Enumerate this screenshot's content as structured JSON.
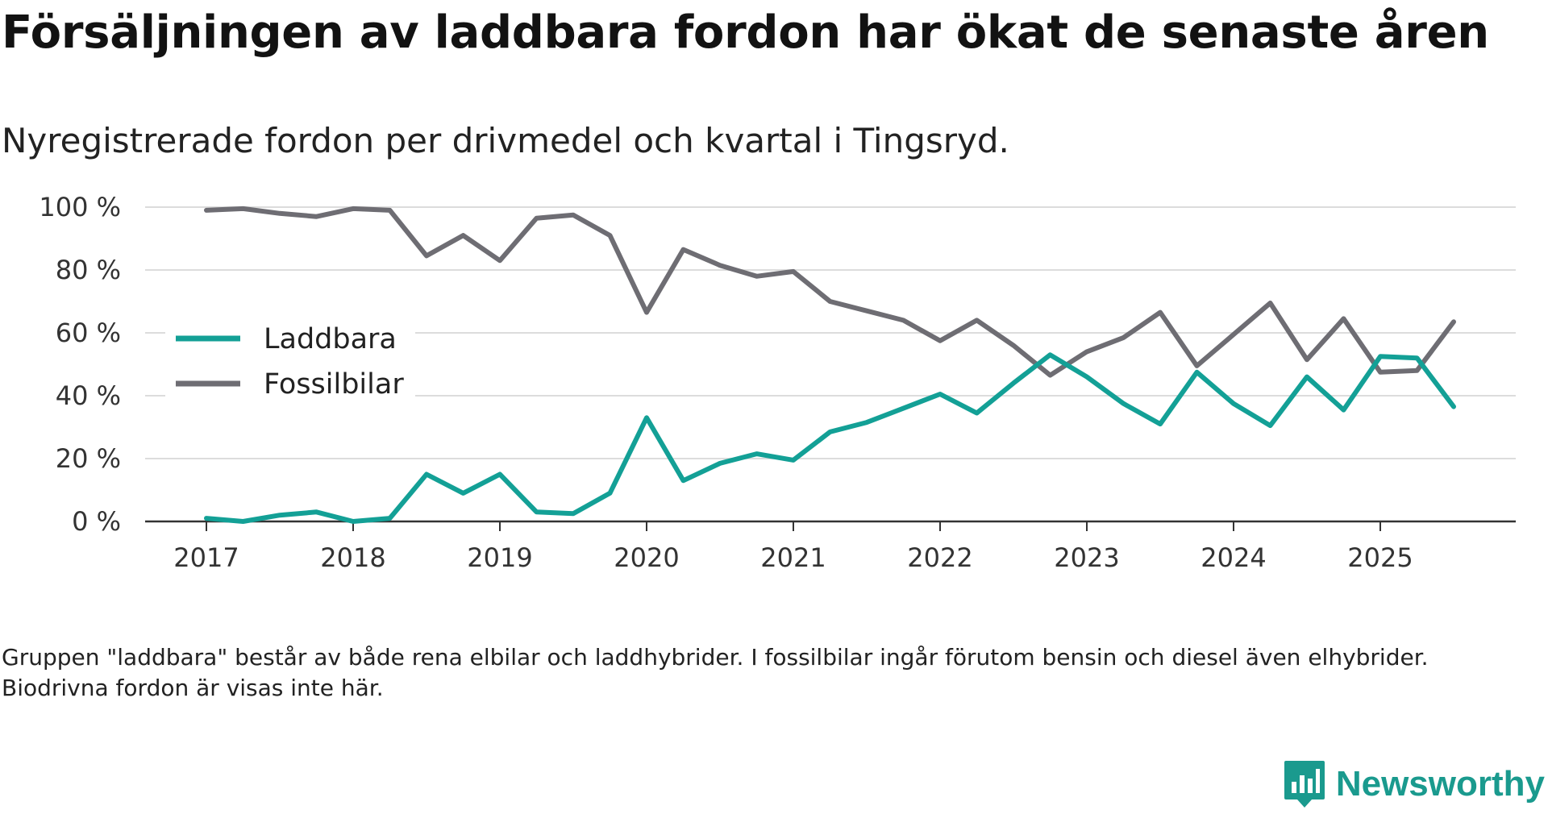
{
  "header": {
    "title": "Försäljningen av laddbara fordon har ökat de senaste åren",
    "subtitle": "Nyregistrerade fordon per drivmedel och kvartal i Tingsryd."
  },
  "footnote": "Gruppen \"laddbara\" består av både rena elbilar och laddhybrider. I fossilbilar ingår förutom bensin och diesel även elhybrider. Biodrivna fordon är visas inte här.",
  "brand": {
    "name": "Newsworthy",
    "icon": "newsworthy-logo-icon",
    "color": "#1a9a8e"
  },
  "chart_data": {
    "type": "line",
    "title": "Försäljningen av laddbara fordon har ökat de senaste åren",
    "subtitle": "Nyregistrerade fordon per drivmedel och kvartal i Tingsryd.",
    "xlabel": "",
    "ylabel": "",
    "ylim": [
      0,
      100
    ],
    "yticks": [
      0,
      20,
      40,
      60,
      80,
      100
    ],
    "ytick_labels": [
      "0 %",
      "20 %",
      "40 %",
      "60 %",
      "80 %",
      "100 %"
    ],
    "xticks": [
      "2017",
      "2018",
      "2019",
      "2020",
      "2021",
      "2022",
      "2023",
      "2024",
      "2025"
    ],
    "grid": true,
    "legend_position": "left-middle",
    "x": [
      "2017-Q1",
      "2017-Q2",
      "2017-Q3",
      "2017-Q4",
      "2018-Q1",
      "2018-Q2",
      "2018-Q3",
      "2018-Q4",
      "2019-Q1",
      "2019-Q2",
      "2019-Q3",
      "2019-Q4",
      "2020-Q1",
      "2020-Q2",
      "2020-Q3",
      "2020-Q4",
      "2021-Q1",
      "2021-Q2",
      "2021-Q3",
      "2021-Q4",
      "2022-Q1",
      "2022-Q2",
      "2022-Q3",
      "2022-Q4",
      "2023-Q1",
      "2023-Q2",
      "2023-Q3",
      "2023-Q4",
      "2024-Q1",
      "2024-Q2",
      "2024-Q3",
      "2024-Q4",
      "2025-Q1",
      "2025-Q2",
      "2025-Q3"
    ],
    "series": [
      {
        "name": "Laddbara",
        "color": "#13a096",
        "values": [
          1,
          0,
          2,
          3,
          0,
          1,
          15,
          9,
          15,
          3,
          2.5,
          9,
          33,
          13,
          18.5,
          21.5,
          19.5,
          28.5,
          31.5,
          36,
          40.5,
          34.5,
          44,
          53,
          46,
          37.5,
          31,
          47.5,
          37.5,
          30.5,
          46,
          35.5,
          52.5,
          52,
          36.5
        ]
      },
      {
        "name": "Fossilbilar",
        "color": "#6e6d73",
        "values": [
          99,
          99.5,
          98,
          97,
          99.5,
          99,
          84.5,
          91,
          83,
          96.5,
          97.5,
          91,
          66.5,
          86.5,
          81.5,
          78,
          79.5,
          70,
          67,
          64,
          57.5,
          64,
          56,
          46.5,
          54,
          58.5,
          66.5,
          49.5,
          59.5,
          69.5,
          51.5,
          64.5,
          47.5,
          48,
          63.5
        ]
      }
    ]
  }
}
